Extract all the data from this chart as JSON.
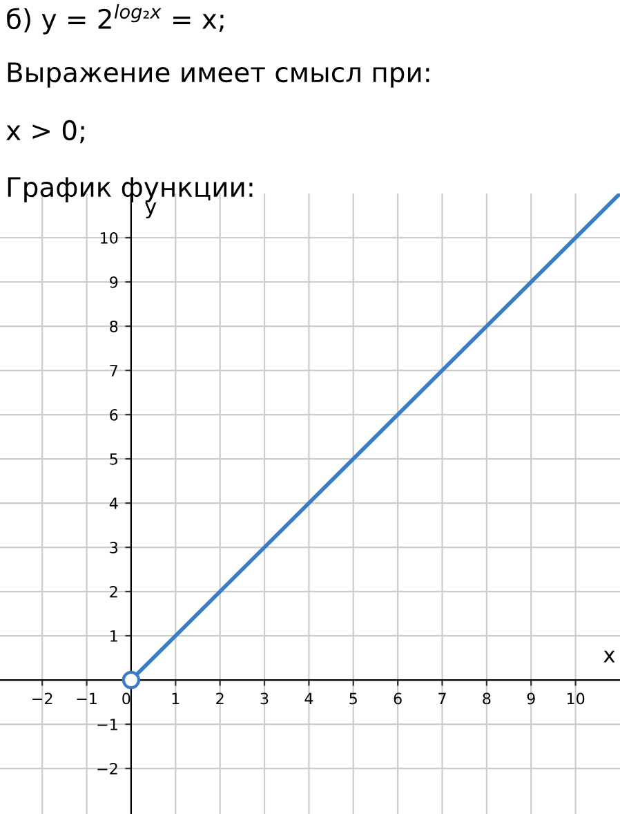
{
  "chart_data": {
    "type": "line",
    "title": "б) y = 2$^{log₂x}$ = x;",
    "subtitle": "Выражение имеет смысл при:",
    "annotations": [
      "x > 0;",
      "График функции:"
    ],
    "xlabel": "x",
    "ylabel": "y",
    "series": [
      {
        "color": "#3b7dc4",
        "x": [
          0,
          11
        ],
        "values": [
          0,
          11
        ],
        "marker": "circle"
      }
    ],
    "xlim": [
      -2.95,
      11
    ],
    "ylim": [
      -3.03,
      11
    ],
    "xticks": [
      -2,
      -1,
      {
        "value": 0,
        "label": "0"
      },
      1,
      2,
      3,
      4,
      5,
      6,
      7,
      8,
      9,
      10
    ],
    "yticks": [
      -2,
      -1,
      {
        "value": 0,
        "label": null
      },
      1,
      2,
      3,
      4,
      5,
      6,
      7,
      8,
      9,
      10
    ],
    "grid": true
  }
}
